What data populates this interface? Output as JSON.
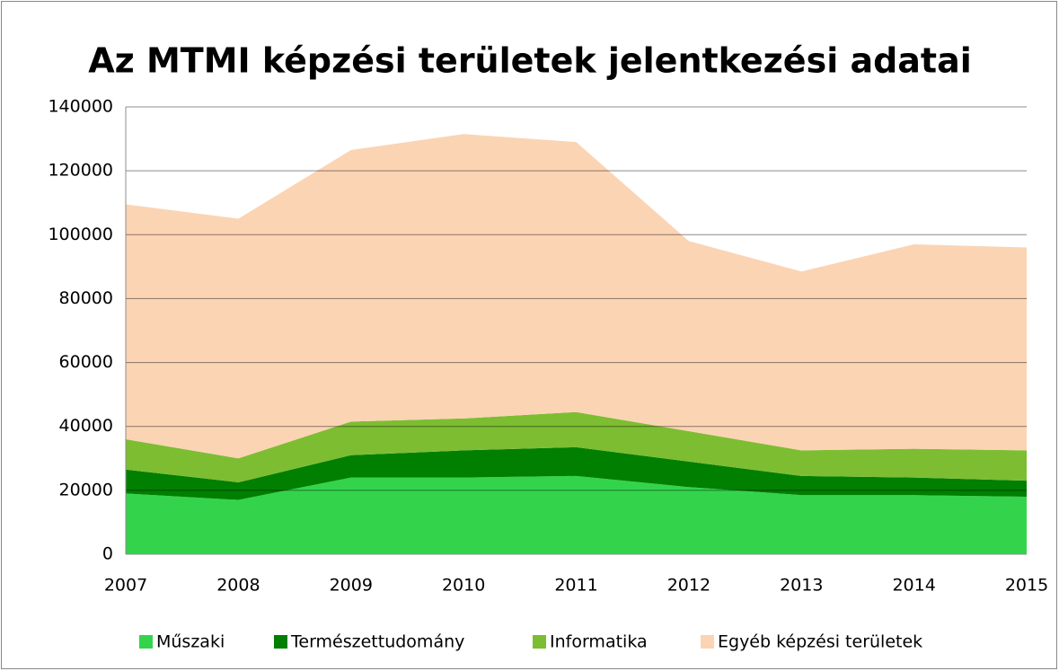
{
  "chart_data": {
    "type": "stacked_area",
    "title": "Az MTMI képzési területek jelentkezési adatai",
    "categories": [
      "2007",
      "2008",
      "2009",
      "2010",
      "2011",
      "2012",
      "2013",
      "2014",
      "2015"
    ],
    "series": [
      {
        "name": "Műszaki",
        "color": "#33d44c",
        "values": [
          19000,
          17000,
          24000,
          24000,
          24500,
          21000,
          18500,
          18500,
          18000
        ]
      },
      {
        "name": "Természettudomány",
        "color": "#007f00",
        "values": [
          7500,
          5500,
          7000,
          8500,
          9000,
          8000,
          6000,
          5500,
          5000
        ]
      },
      {
        "name": "Informatika",
        "color": "#7dbd32",
        "values": [
          9500,
          7500,
          10500,
          10000,
          11000,
          9500,
          8000,
          9000,
          9500
        ]
      },
      {
        "name": "Egyéb képzési területek",
        "color": "#fbd4b4",
        "values": [
          73500,
          75000,
          85000,
          89000,
          84500,
          59500,
          56000,
          64000,
          63500
        ]
      }
    ],
    "ylim": [
      0,
      140000
    ],
    "yticks": [
      0,
      20000,
      40000,
      60000,
      80000,
      100000,
      120000,
      140000
    ],
    "grid": true,
    "legend": "bottom"
  }
}
